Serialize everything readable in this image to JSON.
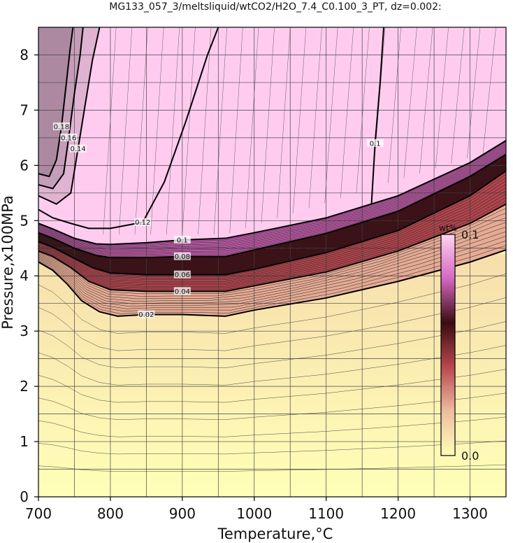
{
  "chart_data": {
    "type": "contour",
    "title": "MG133_057_3/meltsliquid/wtCO2/H2O_7.4_C0.100_3_PT, dz=0.002:",
    "xlabel": "Temperature,°C",
    "ylabel": "Pressure,x100MPa",
    "xlim": [
      700,
      1350
    ],
    "ylim": [
      0,
      8.5
    ],
    "xticks": [
      700,
      800,
      900,
      1000,
      1100,
      1200,
      1300
    ],
    "yticks": [
      0,
      1,
      2,
      3,
      4,
      5,
      6,
      7,
      8
    ],
    "grid": true,
    "colorbar": {
      "unit": "wt%",
      "max_label": "0.1",
      "min_label": "0.0",
      "range": [
        0.0,
        0.1
      ],
      "placement": "right-inside",
      "colors": [
        "#ffffb8",
        "#eebca0",
        "#b84850",
        "#3a0c12",
        "#d468c0",
        "#ffd4f2"
      ]
    },
    "contour_interval": 0.002,
    "contour_lines": [
      {
        "level": 0.02,
        "label": "0.02",
        "points": [
          [
            700,
            4.25
          ],
          [
            720,
            4.1
          ],
          [
            740,
            3.85
          ],
          [
            760,
            3.55
          ],
          [
            785,
            3.35
          ],
          [
            810,
            3.27
          ],
          [
            850,
            3.3
          ],
          [
            900,
            3.3
          ],
          [
            960,
            3.27
          ],
          [
            1000,
            3.38
          ],
          [
            1100,
            3.6
          ],
          [
            1200,
            3.9
          ],
          [
            1300,
            4.25
          ],
          [
            1350,
            4.47
          ]
        ]
      },
      {
        "level": 0.04,
        "label": "0.04",
        "points": [
          [
            700,
            4.45
          ],
          [
            720,
            4.35
          ],
          [
            745,
            4.15
          ],
          [
            770,
            3.9
          ],
          [
            800,
            3.75
          ],
          [
            850,
            3.72
          ],
          [
            900,
            3.72
          ],
          [
            960,
            3.72
          ],
          [
            1000,
            3.82
          ],
          [
            1100,
            4.07
          ],
          [
            1200,
            4.45
          ],
          [
            1300,
            4.95
          ],
          [
            1350,
            5.3
          ]
        ]
      },
      {
        "level": 0.06,
        "label": "0.06",
        "points": [
          [
            700,
            4.62
          ],
          [
            720,
            4.52
          ],
          [
            745,
            4.35
          ],
          [
            775,
            4.15
          ],
          [
            800,
            4.05
          ],
          [
            850,
            4.02
          ],
          [
            900,
            4.02
          ],
          [
            960,
            4.02
          ],
          [
            1000,
            4.12
          ],
          [
            1100,
            4.42
          ],
          [
            1200,
            4.82
          ],
          [
            1300,
            5.45
          ],
          [
            1350,
            5.9
          ]
        ]
      },
      {
        "level": 0.08,
        "label": "0.08",
        "points": [
          [
            700,
            4.78
          ],
          [
            720,
            4.68
          ],
          [
            750,
            4.5
          ],
          [
            780,
            4.37
          ],
          [
            800,
            4.33
          ],
          [
            850,
            4.33
          ],
          [
            900,
            4.35
          ],
          [
            960,
            4.35
          ],
          [
            1000,
            4.47
          ],
          [
            1100,
            4.77
          ],
          [
            1200,
            5.17
          ],
          [
            1300,
            5.8
          ],
          [
            1350,
            6.2
          ]
        ]
      },
      {
        "level": 0.1,
        "label": "0.1",
        "points": [
          [
            700,
            4.95
          ],
          [
            720,
            4.85
          ],
          [
            750,
            4.68
          ],
          [
            780,
            4.58
          ],
          [
            800,
            4.57
          ],
          [
            850,
            4.6
          ],
          [
            900,
            4.65
          ],
          [
            960,
            4.68
          ],
          [
            1000,
            4.78
          ],
          [
            1100,
            5.05
          ],
          [
            1200,
            5.45
          ],
          [
            1300,
            6.05
          ],
          [
            1350,
            6.45
          ]
        ]
      },
      {
        "level": 0.12,
        "label": "0.12",
        "points": [
          [
            700,
            5.2
          ],
          [
            720,
            5.05
          ],
          [
            745,
            4.95
          ],
          [
            770,
            4.86
          ],
          [
            800,
            4.86
          ],
          [
            845,
            4.97
          ],
          [
            875,
            5.7
          ],
          [
            905,
            6.8
          ],
          [
            935,
            8.0
          ],
          [
            950,
            8.5
          ]
        ]
      },
      {
        "level": 0.1,
        "label": "0.1",
        "points": [
          [
            1163,
            5.3
          ],
          [
            1168,
            6.4
          ],
          [
            1175,
            7.5
          ],
          [
            1180,
            8.5
          ]
        ]
      },
      {
        "level": 0.14,
        "label": "0.14",
        "points": [
          [
            700,
            5.45
          ],
          [
            725,
            5.3
          ],
          [
            745,
            5.5
          ],
          [
            755,
            6.3
          ],
          [
            765,
            7.1
          ],
          [
            775,
            7.9
          ],
          [
            785,
            8.5
          ]
        ]
      },
      {
        "level": 0.16,
        "label": "0.16",
        "points": [
          [
            700,
            5.65
          ],
          [
            720,
            5.58
          ],
          [
            735,
            5.85
          ],
          [
            742,
            6.5
          ],
          [
            750,
            7.3
          ],
          [
            758,
            8.0
          ],
          [
            762,
            8.5
          ]
        ]
      },
      {
        "level": 0.18,
        "label": "0.18",
        "points": [
          [
            700,
            5.85
          ],
          [
            715,
            5.8
          ],
          [
            725,
            6.1
          ],
          [
            732,
            6.7
          ],
          [
            738,
            7.4
          ],
          [
            744,
            8.1
          ],
          [
            748,
            8.5
          ]
        ]
      }
    ],
    "annotations": [
      "0.02",
      "0.04",
      "0.06",
      "0.08",
      "0.1",
      "0.12",
      "0.14",
      "0.16",
      "0.18"
    ]
  }
}
